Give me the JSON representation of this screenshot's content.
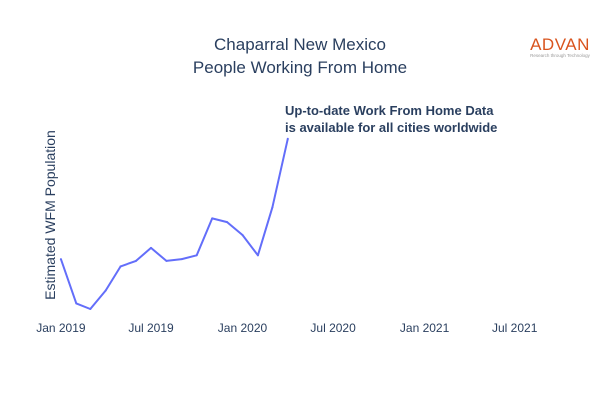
{
  "logo": {
    "name": "ADVAN",
    "tagline": "Research through Technology",
    "color": "#d9541e"
  },
  "annotation": {
    "line1": "Up-to-date Work From Home Data",
    "line2": "is available for all cities worldwide"
  },
  "chart_data": {
    "type": "line",
    "title": [
      "Chaparral New Mexico",
      "People Working From Home"
    ],
    "xlabel": "",
    "ylabel": "Estimated WFM Population",
    "x_tick_labels": [
      "Jan 2019",
      "Jul 2019",
      "Jan 2020",
      "Jul 2020",
      "Jan 2021",
      "Jul 2021"
    ],
    "x_ticks": [
      "2019-01-01",
      "2019-07-01",
      "2020-01-01",
      "2020-07-01",
      "2021-01-01",
      "2021-07-01"
    ],
    "xlim": [
      "2018-11-20",
      "2021-09-20"
    ],
    "y_tick_labels_visible": false,
    "y_units": "relative index (0-100, axis values not printed)",
    "ylim": [
      0,
      100
    ],
    "grid": false,
    "legend": "none",
    "series_color": "#636efa",
    "series": [
      {
        "x": [
          "2019-01-01",
          "2019-02-01",
          "2019-03-01",
          "2019-04-01",
          "2019-05-01",
          "2019-06-01",
          "2019-07-01",
          "2019-08-01",
          "2019-09-01",
          "2019-10-01",
          "2019-11-01",
          "2019-12-01",
          "2020-01-01",
          "2020-02-01",
          "2020-03-01",
          "2020-04-01"
        ],
        "values": [
          27,
          3,
          0,
          10,
          23,
          26,
          33,
          26,
          27,
          29,
          49,
          47,
          40,
          29,
          55,
          92
        ]
      }
    ]
  }
}
